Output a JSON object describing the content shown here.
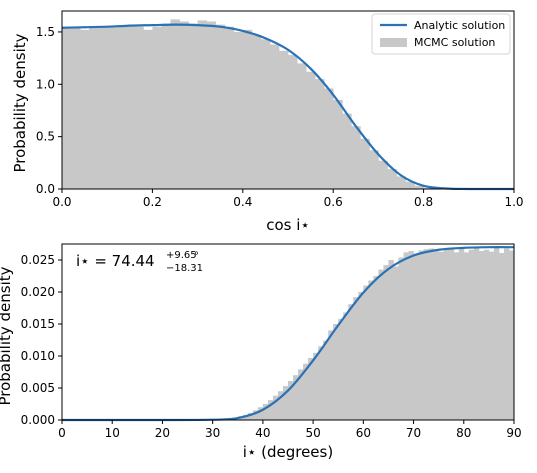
{
  "chart_data": [
    {
      "type": "bar",
      "xlabel": "cos i⋆",
      "ylabel": "Probability density",
      "xlim": [
        0.0,
        1.0
      ],
      "ylim": [
        0.0,
        1.7
      ],
      "xticks": [
        0.0,
        0.2,
        0.4,
        0.6,
        0.8,
        1.0
      ],
      "xtick_labels": [
        "0.0",
        "0.2",
        "0.4",
        "0.6",
        "0.8",
        "1.0"
      ],
      "yticks": [
        0.0,
        0.5,
        1.0,
        1.5
      ],
      "ytick_labels": [
        "0.0",
        "0.5",
        "1.0",
        "1.5"
      ],
      "grid": false,
      "legend_position": "top-right",
      "colors": {
        "histogram": "#c8c8c8",
        "curve": "#2a72b5"
      },
      "series": [
        {
          "name": "MCMC solution",
          "kind": "histogram",
          "bin_width": 0.02,
          "bin_start": 0.0,
          "values": [
            1.54,
            1.55,
            1.52,
            1.54,
            1.55,
            1.55,
            1.55,
            1.56,
            1.55,
            1.52,
            1.55,
            1.58,
            1.62,
            1.6,
            1.58,
            1.61,
            1.6,
            1.57,
            1.55,
            1.5,
            1.52,
            1.47,
            1.43,
            1.38,
            1.32,
            1.28,
            1.2,
            1.12,
            1.05,
            0.96,
            0.85,
            0.72,
            0.6,
            0.48,
            0.37,
            0.27,
            0.19,
            0.12,
            0.07,
            0.03,
            0.01,
            0.0,
            0.0,
            0.0,
            0.0,
            0.0,
            0.0,
            0.0,
            0.0,
            0.0
          ]
        },
        {
          "name": "Analytic solution",
          "kind": "line",
          "x": [
            0.0,
            0.05,
            0.1,
            0.15,
            0.2,
            0.25,
            0.3,
            0.35,
            0.4,
            0.45,
            0.5,
            0.55,
            0.6,
            0.65,
            0.7,
            0.75,
            0.8,
            0.85,
            0.9,
            0.95,
            1.0
          ],
          "y": [
            1.54,
            1.545,
            1.55,
            1.56,
            1.565,
            1.57,
            1.565,
            1.55,
            1.51,
            1.44,
            1.33,
            1.15,
            0.9,
            0.6,
            0.33,
            0.13,
            0.03,
            0.005,
            0.0,
            0.0,
            0.0
          ]
        }
      ],
      "legend": [
        "Analytic solution",
        "MCMC solution"
      ]
    },
    {
      "type": "bar",
      "xlabel": "i⋆ (degrees)",
      "ylabel": "Probability density",
      "xlim": [
        0,
        90
      ],
      "ylim": [
        0.0,
        0.0275
      ],
      "xticks": [
        0,
        10,
        20,
        30,
        40,
        50,
        60,
        70,
        80,
        90
      ],
      "xtick_labels": [
        "0",
        "10",
        "20",
        "30",
        "40",
        "50",
        "60",
        "70",
        "80",
        "90"
      ],
      "yticks": [
        0.0,
        0.005,
        0.01,
        0.015,
        0.02,
        0.025
      ],
      "ytick_labels": [
        "0.000",
        "0.005",
        "0.010",
        "0.015",
        "0.020",
        "0.025"
      ],
      "grid": false,
      "colors": {
        "histogram": "#c8c8c8",
        "curve": "#2a72b5"
      },
      "annotation": {
        "main": "i⋆ = 74.44",
        "superscript": "+9.65",
        "subscript": "−18.31",
        "unit": "°"
      },
      "series": [
        {
          "name": "MCMC",
          "kind": "histogram",
          "bin_width": 1.0,
          "bin_start": 30,
          "values": [
            0.0,
            5e-05,
            0.0001,
            0.0002,
            0.0004,
            0.0006,
            0.0008,
            0.0011,
            0.0015,
            0.002,
            0.0025,
            0.0031,
            0.0038,
            0.0045,
            0.0053,
            0.0061,
            0.007,
            0.0079,
            0.0088,
            0.0097,
            0.0105,
            0.0115,
            0.0124,
            0.014,
            0.015,
            0.0158,
            0.0168,
            0.0181,
            0.0192,
            0.02,
            0.021,
            0.0218,
            0.0225,
            0.0235,
            0.0242,
            0.025,
            0.024,
            0.0254,
            0.0262,
            0.0264,
            0.026,
            0.0265,
            0.0267,
            0.0268,
            0.0266,
            0.0263,
            0.0268,
            0.0267,
            0.0262,
            0.0268,
            0.0262,
            0.0266,
            0.0269,
            0.0264,
            0.0266,
            0.0263,
            0.0269,
            0.0261,
            0.0268,
            0.0265
          ]
        },
        {
          "name": "Analytic",
          "kind": "line",
          "x": [
            0,
            10,
            20,
            30,
            35,
            40,
            45,
            50,
            55,
            60,
            65,
            70,
            75,
            80,
            85,
            90
          ],
          "y": [
            0.0,
            0.0,
            0.0,
            5e-05,
            0.0003,
            0.0016,
            0.0046,
            0.0093,
            0.0148,
            0.0199,
            0.0236,
            0.0257,
            0.0266,
            0.0269,
            0.027,
            0.027
          ]
        }
      ]
    }
  ]
}
